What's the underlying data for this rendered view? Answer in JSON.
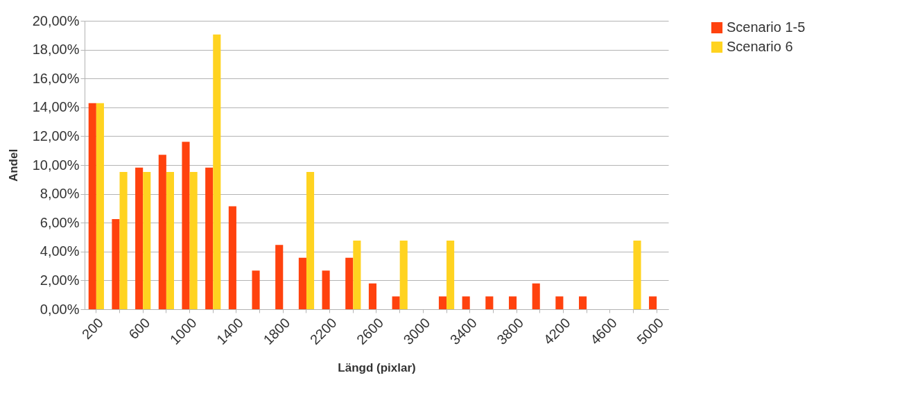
{
  "chart_data": {
    "type": "bar",
    "xlabel": "Längd (pixlar)",
    "ylabel": "Andel",
    "categories": [
      "200",
      null,
      "600",
      null,
      "1000",
      null,
      "1400",
      null,
      "1800",
      null,
      "2200",
      null,
      "2600",
      null,
      "3000",
      null,
      "3400",
      null,
      "3800",
      null,
      "4200",
      null,
      "4600",
      null,
      "5000"
    ],
    "series": [
      {
        "name": "Scenario 1-5",
        "color": "#ff420e",
        "values": [
          14.29,
          6.25,
          9.82,
          10.71,
          11.61,
          9.82,
          7.14,
          2.68,
          4.46,
          3.57,
          2.68,
          3.57,
          1.79,
          0.89,
          0,
          0.89,
          0.89,
          0.89,
          0.89,
          1.79,
          0.89,
          0.89,
          0,
          0,
          0.89
        ]
      },
      {
        "name": "Scenario 6",
        "color": "#ffd320",
        "values": [
          14.29,
          9.52,
          9.52,
          9.52,
          9.52,
          19.05,
          0,
          0,
          0,
          9.52,
          0,
          4.76,
          0,
          4.76,
          0,
          4.76,
          0,
          0,
          0,
          0,
          0,
          0,
          0,
          4.76,
          0
        ]
      }
    ],
    "ylim": [
      0,
      20
    ],
    "yticks": [
      {
        "value": 0,
        "label": "0,00%"
      },
      {
        "value": 2,
        "label": "2,00%"
      },
      {
        "value": 4,
        "label": "4,00%"
      },
      {
        "value": 6,
        "label": "6,00%"
      },
      {
        "value": 8,
        "label": "8,00%"
      },
      {
        "value": 10,
        "label": "10,00%"
      },
      {
        "value": 12,
        "label": "12,00%"
      },
      {
        "value": 14,
        "label": "14,00%"
      },
      {
        "value": 16,
        "label": "16,00%"
      },
      {
        "value": 18,
        "label": "18,00%"
      },
      {
        "value": 20,
        "label": "20,00%"
      }
    ],
    "grid": "y",
    "legend": "right"
  }
}
